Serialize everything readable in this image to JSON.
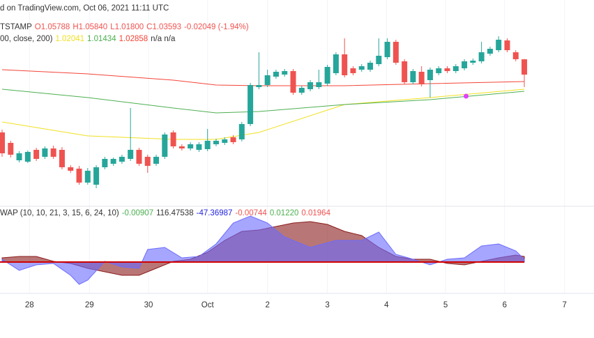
{
  "header": {
    "text": "d on TradingView.com, Oct 06, 2021 11:11 UTC"
  },
  "chart_data": [
    {
      "type": "candlestick",
      "symbol": "TSTAMP",
      "ohlc": [
        "O1.05788",
        "H1.05840",
        "L1.01800",
        "C1.03593",
        "-0.02049 (-1.94%)"
      ],
      "ma_label": "00, close, 200)",
      "ma_na": "n/a n/a",
      "up_color": "#26a69a",
      "down_color": "#ef5350",
      "xlim": [
        -0.244,
        69.14
      ],
      "xticks": [
        {
          "value": 3.2,
          "label": "28"
        },
        {
          "value": 10.2,
          "label": "29"
        },
        {
          "value": 17.1,
          "label": "30"
        },
        {
          "value": 24,
          "label": "Oct"
        },
        {
          "value": 31,
          "label": "2"
        },
        {
          "value": 38,
          "label": "3"
        },
        {
          "value": 44.9,
          "label": "4"
        },
        {
          "value": 51.8,
          "label": "5"
        },
        {
          "value": 58.7,
          "label": "6"
        },
        {
          "value": 65.7,
          "label": "7"
        }
      ],
      "ylim": [
        0.848,
        1.143
      ],
      "open": [
        0.953,
        0.938,
        0.913,
        0.911,
        0.928,
        0.918,
        0.93,
        0.928,
        0.903,
        0.901,
        0.881,
        0.878,
        0.903,
        0.908,
        0.911,
        0.915,
        0.928,
        0.918,
        0.908,
        0.918,
        0.953,
        0.933,
        0.93,
        0.928,
        0.929,
        0.936,
        0.938,
        0.946,
        0.943,
        0.965,
        1.018,
        1.021,
        1.033,
        1.036,
        1.041,
        1.01,
        1.015,
        1.018,
        1.023,
        1.038,
        1.065,
        1.045,
        1.043,
        1.043,
        1.051,
        1.061,
        1.083,
        1.055,
        1.025,
        1.04,
        1.028,
        1.038,
        1.045,
        1.041,
        1.045,
        1.053,
        1.055,
        1.066,
        1.071,
        1.085,
        1.068,
        1.05788
      ],
      "high": [
        0.957,
        0.941,
        0.926,
        0.927,
        0.931,
        0.933,
        0.934,
        0.932,
        0.906,
        0.905,
        0.902,
        0.906,
        0.918,
        0.917,
        0.921,
        0.988,
        0.931,
        0.921,
        0.921,
        0.953,
        0.956,
        0.936,
        0.939,
        0.939,
        0.958,
        0.944,
        0.946,
        0.949,
        0.968,
        1.024,
        1.068,
        1.043,
        1.043,
        1.044,
        1.044,
        1.02,
        1.028,
        1.043,
        1.05,
        1.068,
        1.088,
        1.048,
        1.051,
        1.056,
        1.088,
        1.088,
        1.086,
        1.058,
        1.044,
        1.048,
        1.046,
        1.048,
        1.048,
        1.051,
        1.058,
        1.059,
        1.083,
        1.076,
        1.091,
        1.088,
        1.071,
        1.0584
      ],
      "low": [
        0.918,
        0.917,
        0.91,
        0.909,
        0.912,
        0.915,
        0.915,
        0.9,
        0.895,
        0.878,
        0.878,
        0.873,
        0.9,
        0.905,
        0.908,
        0.912,
        0.905,
        0.895,
        0.905,
        0.915,
        0.93,
        0.927,
        0.927,
        0.925,
        0.926,
        0.933,
        0.935,
        0.936,
        0.94,
        0.962,
        1.015,
        1.018,
        1.03,
        1.033,
        1.007,
        1.007,
        1.012,
        1.015,
        1.02,
        1.035,
        1.032,
        1.035,
        1.04,
        1.04,
        1.048,
        1.058,
        1.05,
        1.022,
        1.022,
        1.019,
        1.003,
        1.035,
        1.038,
        1.038,
        1.042,
        1.05,
        1.052,
        1.063,
        1.068,
        1.068,
        1.055,
        1.018
      ],
      "close": [
        0.923,
        0.921,
        0.923,
        0.925,
        0.915,
        0.93,
        0.918,
        0.903,
        0.898,
        0.881,
        0.898,
        0.903,
        0.915,
        0.915,
        0.918,
        0.928,
        0.908,
        0.905,
        0.918,
        0.95,
        0.933,
        0.93,
        0.936,
        0.936,
        0.941,
        0.941,
        0.943,
        0.939,
        0.965,
        1.021,
        1.021,
        1.035,
        1.04,
        1.041,
        1.01,
        1.017,
        1.025,
        1.025,
        1.047,
        1.065,
        1.035,
        1.038,
        1.048,
        1.053,
        1.063,
        1.083,
        1.053,
        1.025,
        1.041,
        1.022,
        1.043,
        1.045,
        1.041,
        1.048,
        1.055,
        1.056,
        1.068,
        1.073,
        1.086,
        1.071,
        1.058,
        1.03593
      ],
      "series": [
        {
          "color": "#f0e020",
          "legend_value": "1.02041",
          "x": [
            0,
            10,
            20,
            25,
            30,
            40,
            50,
            61
          ],
          "values": [
            0.968,
            0.948,
            0.943,
            0.943,
            0.953,
            0.993,
            1.003,
            1.015
          ]
        },
        {
          "color": "#4caf50",
          "legend_value": "1.01434",
          "x": [
            0,
            10,
            20,
            25,
            30,
            40,
            50,
            61
          ],
          "values": [
            1.015,
            1.003,
            0.988,
            0.981,
            0.983,
            0.993,
            1.0,
            1.012
          ]
        },
        {
          "color": "#f44336",
          "legend_value": "1.02858",
          "x": [
            0,
            10,
            20,
            25,
            30,
            40,
            50,
            61
          ],
          "values": [
            1.043,
            1.037,
            1.028,
            1.021,
            1.02,
            1.02,
            1.023,
            1.026
          ]
        }
      ],
      "markers": [
        {
          "x": 54.2,
          "value": 1.005,
          "color": "#e040fb"
        }
      ]
    },
    {
      "type": "area",
      "legend": "WAP (10, 10, 21, 3, 15, 6, 24, 10)",
      "legend_items": [
        {
          "text": "-0.00907",
          "color": "#4caf50"
        },
        {
          "text": "116.47538",
          "color": "#333333"
        },
        {
          "text": "-47.36987",
          "color": "#2424e0"
        },
        {
          "text": "-0.00744",
          "color": "#ef5350"
        },
        {
          "text": "0.01220",
          "color": "#4caf50"
        },
        {
          "text": "0.01964",
          "color": "#ef5350"
        }
      ],
      "ylim": [
        -0.04,
        0.04
      ],
      "zero_color": "#d00000",
      "series": [
        {
          "color": "#8b1a1a",
          "x": [
            0,
            2,
            4,
            6,
            8,
            10,
            12,
            14,
            16,
            18,
            20,
            22,
            24,
            26,
            28,
            30,
            32,
            34,
            36,
            38,
            40,
            42,
            44,
            46,
            48,
            50,
            52,
            54,
            56,
            58,
            60,
            61
          ],
          "values": [
            0.003,
            0.004,
            0.004,
            0.0005,
            -0.001,
            -0.0045,
            -0.007,
            -0.0095,
            -0.0095,
            -0.0045,
            0.0005,
            0.002,
            0.007,
            0.0155,
            0.022,
            0.023,
            0.0255,
            0.028,
            0.029,
            0.027,
            0.022,
            0.019,
            0.0105,
            0.004,
            0.002,
            0.002,
            -0.001,
            -0.002,
            0.0005,
            0.003,
            0.005,
            0.004
          ]
        },
        {
          "color": "#6b6bff",
          "x": [
            0,
            2,
            4,
            6,
            8,
            9,
            10,
            12,
            14,
            16,
            17,
            19,
            21,
            23,
            25,
            27,
            29,
            31,
            33,
            36,
            39,
            42,
            44,
            46,
            48,
            50,
            52,
            54,
            56,
            58,
            60,
            61
          ],
          "values": [
            0.002,
            -0.006,
            -0.002,
            -0.001,
            -0.0095,
            -0.016,
            -0.013,
            0.0005,
            -0.0035,
            -0.0045,
            0.009,
            0.0105,
            0.003,
            0.004,
            0.013,
            0.028,
            0.033,
            0.028,
            0.018,
            0.0105,
            0.0155,
            0.0155,
            0.0215,
            0.0055,
            0.002,
            -0.002,
            0.002,
            0.003,
            0.0115,
            0.013,
            0.008,
            0.002
          ]
        }
      ]
    }
  ]
}
